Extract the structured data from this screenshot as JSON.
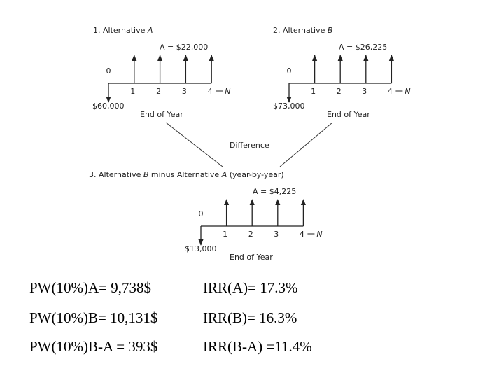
{
  "diagrams": [
    {
      "title": [
        "1. Alternative ",
        "A"
      ],
      "annuity": "A = $22,000",
      "initial": "$60,000",
      "start": "0",
      "periods": [
        "1",
        "2",
        "3",
        "4"
      ],
      "horizon": "N",
      "axis_label": "End of Year"
    },
    {
      "title": [
        "2. Alternative ",
        "B"
      ],
      "annuity": "A = $26,225",
      "initial": "$73,000",
      "start": "0",
      "periods": [
        "1",
        "2",
        "3",
        "4"
      ],
      "horizon": "N",
      "axis_label": "End of Year"
    },
    {
      "title": [
        "3. Alternative ",
        "B",
        " minus Alternative ",
        "A",
        " (year-by-year)"
      ],
      "annuity": "A = $4,225",
      "initial": "$13,000",
      "start": "0",
      "periods": [
        "1",
        "2",
        "3",
        "4"
      ],
      "horizon": "N",
      "axis_label": "End of Year"
    }
  ],
  "difference": "Difference",
  "results": [
    [
      "PW(10%)A= 9,738$",
      "IRR(A)= 17.3%"
    ],
    [
      "PW(10%)B= 10,131$",
      "IRR(B)= 16.3%"
    ],
    [
      "PW(10%)B-A = 393$",
      "IRR(B-A) =11.4%"
    ]
  ]
}
